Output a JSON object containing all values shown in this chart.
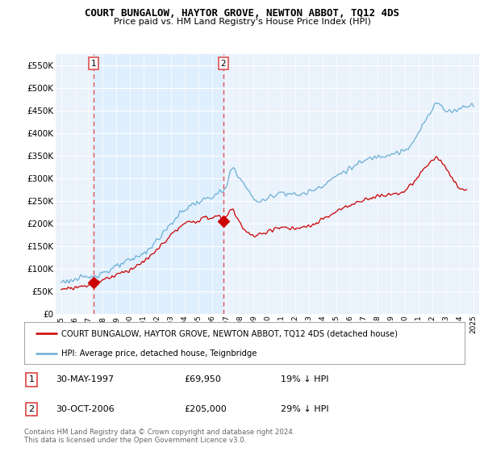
{
  "title": "COURT BUNGALOW, HAYTOR GROVE, NEWTON ABBOT, TQ12 4DS",
  "subtitle": "Price paid vs. HM Land Registry's House Price Index (HPI)",
  "legend_line1": "COURT BUNGALOW, HAYTOR GROVE, NEWTON ABBOT, TQ12 4DS (detached house)",
  "legend_line2": "HPI: Average price, detached house, Teignbridge",
  "footer": "Contains HM Land Registry data © Crown copyright and database right 2024.\nThis data is licensed under the Open Government Licence v3.0.",
  "sale1_label": "1",
  "sale1_date": "30-MAY-1997",
  "sale1_price": "£69,950",
  "sale1_hpi": "19% ↓ HPI",
  "sale1_year": 1997.37,
  "sale1_price_val": 69950,
  "sale2_label": "2",
  "sale2_date": "30-OCT-2006",
  "sale2_price": "£205,000",
  "sale2_hpi": "29% ↓ HPI",
  "sale2_year": 2006.79,
  "sale2_price_val": 205000,
  "hpi_color": "#6baed6",
  "price_color": "#cc0000",
  "vline_color": "#e05050",
  "shade_color": "#ddeeff",
  "plot_bg": "#eaf2fb",
  "ylim": [
    0,
    575000
  ],
  "yticks": [
    0,
    50000,
    100000,
    150000,
    200000,
    250000,
    300000,
    350000,
    400000,
    450000,
    500000,
    550000
  ],
  "xlim_start": 1994.6,
  "xlim_end": 2025.4,
  "hpi_x": [
    1995.0,
    1995.5,
    1996.0,
    1996.5,
    1997.0,
    1997.5,
    1998.0,
    1998.5,
    1999.0,
    1999.5,
    2000.0,
    2000.5,
    2001.0,
    2001.5,
    2002.0,
    2002.5,
    2003.0,
    2003.5,
    2004.0,
    2004.5,
    2005.0,
    2005.5,
    2006.0,
    2006.5,
    2007.0,
    2007.25,
    2007.5,
    2007.75,
    2008.0,
    2008.5,
    2009.0,
    2009.5,
    2010.0,
    2010.5,
    2011.0,
    2011.5,
    2012.0,
    2012.5,
    2013.0,
    2013.5,
    2014.0,
    2014.5,
    2015.0,
    2015.5,
    2016.0,
    2016.5,
    2017.0,
    2017.5,
    2018.0,
    2018.5,
    2019.0,
    2019.5,
    2020.0,
    2020.5,
    2021.0,
    2021.5,
    2022.0,
    2022.25,
    2022.5,
    2022.75,
    2023.0,
    2023.5,
    2024.0,
    2024.5,
    2025.0
  ],
  "hpi_y": [
    72000,
    74000,
    76000,
    79000,
    82000,
    87000,
    92000,
    97000,
    104000,
    112000,
    118000,
    126000,
    135000,
    148000,
    164000,
    182000,
    200000,
    218000,
    232000,
    242000,
    248000,
    254000,
    260000,
    268000,
    276000,
    310000,
    325000,
    315000,
    300000,
    278000,
    255000,
    248000,
    255000,
    265000,
    270000,
    268000,
    263000,
    265000,
    270000,
    278000,
    285000,
    295000,
    305000,
    315000,
    322000,
    330000,
    338000,
    345000,
    350000,
    352000,
    355000,
    358000,
    360000,
    375000,
    400000,
    430000,
    455000,
    472000,
    465000,
    455000,
    448000,
    450000,
    455000,
    462000,
    465000
  ],
  "red_x": [
    1995.0,
    1995.5,
    1996.0,
    1996.5,
    1997.0,
    1997.37,
    1997.5,
    1998.0,
    1998.5,
    1999.0,
    1999.5,
    2000.0,
    2000.5,
    2001.0,
    2001.5,
    2002.0,
    2002.5,
    2003.0,
    2003.5,
    2004.0,
    2004.5,
    2005.0,
    2005.5,
    2006.0,
    2006.5,
    2006.79,
    2007.0,
    2007.25,
    2007.5,
    2007.75,
    2008.0,
    2008.5,
    2009.0,
    2009.5,
    2010.0,
    2010.5,
    2011.0,
    2011.5,
    2012.0,
    2012.5,
    2013.0,
    2013.5,
    2014.0,
    2014.5,
    2015.0,
    2015.5,
    2016.0,
    2016.5,
    2017.0,
    2017.5,
    2018.0,
    2018.5,
    2019.0,
    2019.5,
    2020.0,
    2020.5,
    2021.0,
    2021.5,
    2022.0,
    2022.25,
    2022.5,
    2022.75,
    2023.0,
    2023.5,
    2024.0,
    2024.5
  ],
  "red_y": [
    55000,
    57000,
    59000,
    62000,
    65000,
    69950,
    72000,
    76000,
    81000,
    87000,
    93000,
    99000,
    107000,
    116000,
    128000,
    143000,
    160000,
    175000,
    189000,
    199000,
    205000,
    208000,
    212000,
    214000,
    218000,
    205000,
    215000,
    232000,
    230000,
    215000,
    202000,
    182000,
    172000,
    175000,
    183000,
    190000,
    192000,
    190000,
    188000,
    190000,
    194000,
    200000,
    208000,
    218000,
    226000,
    234000,
    240000,
    247000,
    253000,
    258000,
    261000,
    263000,
    265000,
    268000,
    272000,
    286000,
    305000,
    325000,
    340000,
    350000,
    342000,
    332000,
    322000,
    295000,
    278000,
    275000
  ]
}
